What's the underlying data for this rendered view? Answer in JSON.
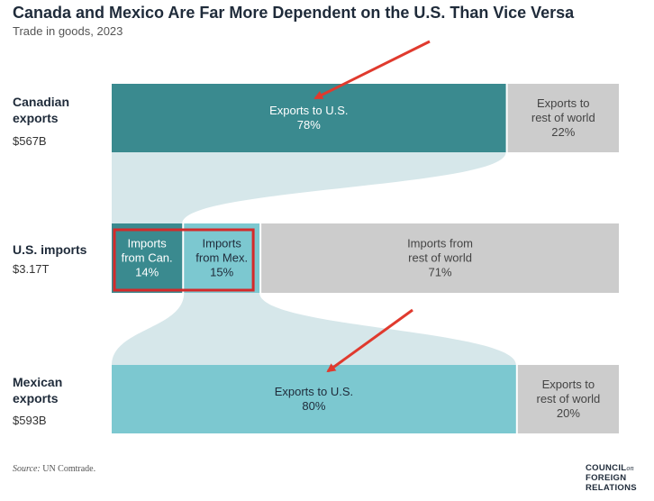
{
  "title": "Canada and Mexico Are Far More Dependent on the U.S. Than Vice Versa",
  "subtitle": "Trade in goods, 2023",
  "rows": {
    "canada": {
      "label_line1": "Canadian",
      "label_line2": "exports",
      "value": "$567B"
    },
    "us": {
      "label": "U.S. imports",
      "value": "$3.17T"
    },
    "mexico": {
      "label_line1": "Mexican",
      "label_line2": "exports",
      "value": "$593B"
    }
  },
  "source_label": "Source:",
  "source_text": "UN Comtrade.",
  "logo": {
    "line1": "COUNCIL",
    "line1_small": "on",
    "line2": "FOREIGN",
    "line3": "RELATIONS"
  },
  "colors": {
    "canada": "#3a8a8f",
    "mexico": "#7cc8d0",
    "rest_of_world": "#cccccc",
    "flow": "#d6e7ea",
    "highlight": "#d42a2a",
    "arrow": "#e03a2e"
  },
  "chart_data": {
    "type": "bar",
    "layout": "stacked-horizontal-with-flows",
    "rows": [
      {
        "name": "Canadian exports",
        "total": "$567B",
        "segments": [
          {
            "label": [
              "Exports to U.S."
            ],
            "pct": 78,
            "pct_label": "78%",
            "color": "#3a8a8f",
            "text_color": "#ffffff"
          },
          {
            "label": [
              "Exports to",
              "rest of world"
            ],
            "pct": 22,
            "pct_label": "22%",
            "color": "#cccccc",
            "text_color": "#444444"
          }
        ]
      },
      {
        "name": "U.S. imports",
        "total": "$3.17T",
        "segments": [
          {
            "label": [
              "Imports",
              "from Can."
            ],
            "pct": 14,
            "pct_label": "14%",
            "color": "#3a8a8f",
            "text_color": "#ffffff"
          },
          {
            "label": [
              "Imports",
              "from Mex."
            ],
            "pct": 15,
            "pct_label": "15%",
            "color": "#7cc8d0",
            "text_color": "#1f2b3a"
          },
          {
            "label": [
              "Imports from",
              "rest of world"
            ],
            "pct": 71,
            "pct_label": "71%",
            "color": "#cccccc",
            "text_color": "#444444"
          }
        ]
      },
      {
        "name": "Mexican exports",
        "total": "$593B",
        "segments": [
          {
            "label": [
              "Exports to U.S."
            ],
            "pct": 80,
            "pct_label": "80%",
            "color": "#7cc8d0",
            "text_color": "#1f2b3a"
          },
          {
            "label": [
              "Exports to",
              "rest of world"
            ],
            "pct": 20,
            "pct_label": "20%",
            "color": "#cccccc",
            "text_color": "#444444"
          }
        ]
      }
    ],
    "flows": [
      {
        "from_row": 0,
        "from_segment": 0,
        "to_row": 1,
        "to_segment": 0
      },
      {
        "from_row": 2,
        "from_segment": 0,
        "to_row": 1,
        "to_segment": 1
      }
    ],
    "annotations": [
      {
        "type": "highlight-box",
        "row": 1,
        "segments": [
          0,
          1
        ]
      },
      {
        "type": "arrow",
        "points_to": "row 0 segment 0 label"
      },
      {
        "type": "arrow",
        "points_to": "row 2 segment 0 label"
      }
    ]
  }
}
